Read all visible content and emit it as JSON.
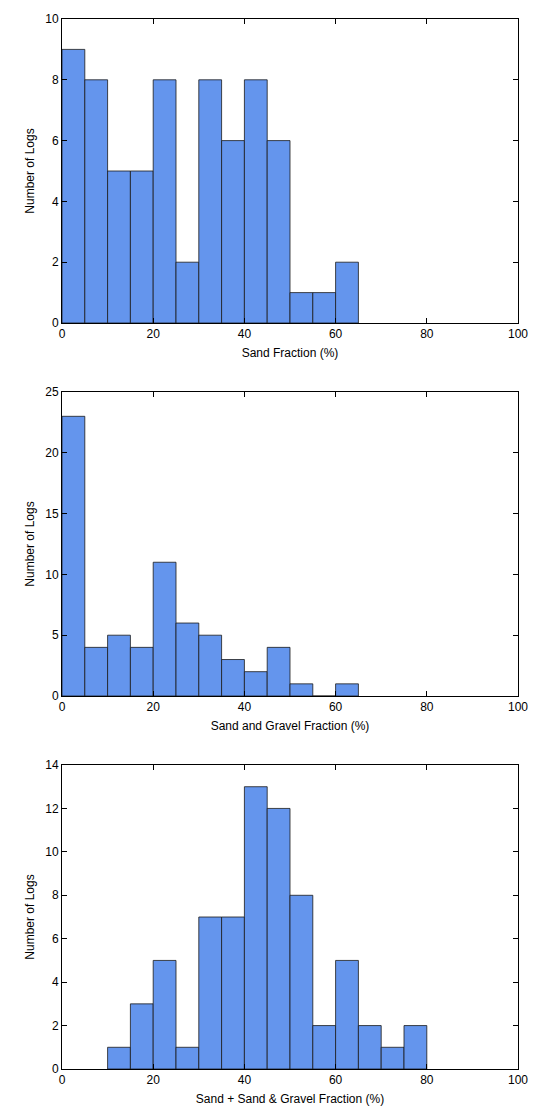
{
  "chart_data": [
    {
      "type": "histogram",
      "xlabel": "Sand Fraction (%)",
      "ylabel": "Number of Logs",
      "bins": [
        0,
        5,
        10,
        15,
        20,
        25,
        30,
        35,
        40,
        45,
        50,
        55,
        60,
        65
      ],
      "values": [
        9,
        8,
        5,
        5,
        8,
        2,
        8,
        6,
        8,
        6,
        1,
        1,
        2
      ],
      "color": "#6495ed",
      "xlim": [
        0,
        100
      ],
      "xticks": [
        0,
        20,
        40,
        60,
        80,
        100
      ],
      "ylim": [
        0,
        10
      ],
      "yticks": [
        0,
        2,
        4,
        6,
        8,
        10
      ],
      "grid": false
    },
    {
      "type": "histogram",
      "xlabel": "Sand and Gravel Fraction (%)",
      "ylabel": "Number of Logs",
      "bins": [
        0,
        5,
        10,
        15,
        20,
        25,
        30,
        35,
        40,
        45,
        50,
        55,
        60,
        65
      ],
      "values": [
        23,
        4,
        5,
        4,
        11,
        6,
        5,
        3,
        2,
        4,
        1,
        0,
        1
      ],
      "color": "#6495ed",
      "xlim": [
        0,
        100
      ],
      "xticks": [
        0,
        20,
        40,
        60,
        80,
        100
      ],
      "ylim": [
        0,
        25
      ],
      "yticks": [
        0,
        5,
        10,
        15,
        20,
        25
      ],
      "grid": false
    },
    {
      "type": "histogram",
      "xlabel": "Sand + Sand & Gravel Fraction (%)",
      "ylabel": "Number of Logs",
      "bins": [
        10,
        15,
        20,
        25,
        30,
        35,
        40,
        45,
        50,
        55,
        60,
        65,
        70,
        75,
        80
      ],
      "values": [
        1,
        3,
        5,
        1,
        7,
        7,
        13,
        12,
        8,
        2,
        5,
        2,
        1,
        2
      ],
      "color": "#6495ed",
      "xlim": [
        0,
        100
      ],
      "xticks": [
        0,
        20,
        40,
        60,
        80,
        100
      ],
      "ylim": [
        0,
        14
      ],
      "yticks": [
        0,
        2,
        4,
        6,
        8,
        10,
        12,
        14
      ],
      "grid": false
    }
  ]
}
